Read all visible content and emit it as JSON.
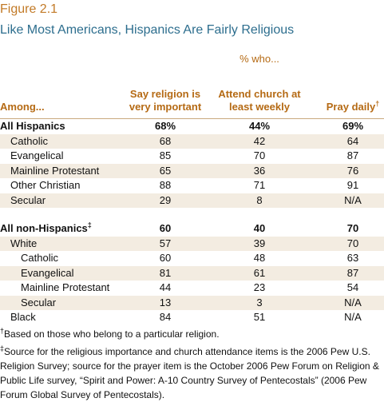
{
  "header": {
    "figure": "Figure 2.1",
    "title": "Like Most Americans, Hispanics Are Fairly Religious"
  },
  "table": {
    "group_label": "% who...",
    "stub_header": "Among...",
    "columns": [
      {
        "label": "Say religion is very important"
      },
      {
        "label": "Attend church at least weekly"
      },
      {
        "label": "Pray daily",
        "sup": "†"
      }
    ],
    "groups": [
      {
        "label": "All Hispanics",
        "values": [
          "68%",
          "44%",
          "69%"
        ],
        "rows": [
          {
            "label": "Catholic",
            "values": [
              "68",
              "42",
              "64"
            ]
          },
          {
            "label": "Evangelical",
            "values": [
              "85",
              "70",
              "87"
            ]
          },
          {
            "label": "Mainline Protestant",
            "values": [
              "65",
              "36",
              "76"
            ]
          },
          {
            "label": "Other Christian",
            "values": [
              "88",
              "71",
              "91"
            ]
          },
          {
            "label": "Secular",
            "values": [
              "29",
              "8",
              "N/A"
            ]
          }
        ]
      },
      {
        "label": "All non-Hispanics",
        "sup": "‡",
        "values": [
          "60",
          "40",
          "70"
        ],
        "rows": [
          {
            "label": "White",
            "values": [
              "57",
              "39",
              "70"
            ],
            "rows": [
              {
                "label": "Catholic",
                "values": [
                  "60",
                  "48",
                  "63"
                ]
              },
              {
                "label": "Evangelical",
                "values": [
                  "81",
                  "61",
                  "87"
                ]
              },
              {
                "label": "Mainline Protestant",
                "values": [
                  "44",
                  "23",
                  "54"
                ]
              },
              {
                "label": "Secular",
                "values": [
                  "13",
                  "3",
                  "N/A"
                ]
              }
            ]
          },
          {
            "label": "Black",
            "values": [
              "84",
              "51",
              "N/A"
            ]
          }
        ]
      }
    ]
  },
  "footnotes": [
    {
      "mark": "†",
      "text": "Based on those who belong to a particular religion."
    },
    {
      "mark": "‡",
      "text": "Source for the religious importance and church attendance items is the 2006 Pew U.S. Religion Survey; source for the prayer item is the October 2006 Pew Forum on Religion & Public Life survey, “Spirit and Power: A-10 Country Survey of Pentecostals” (2006 Pew Forum Global Survey of Pentecostals)."
    }
  ]
}
